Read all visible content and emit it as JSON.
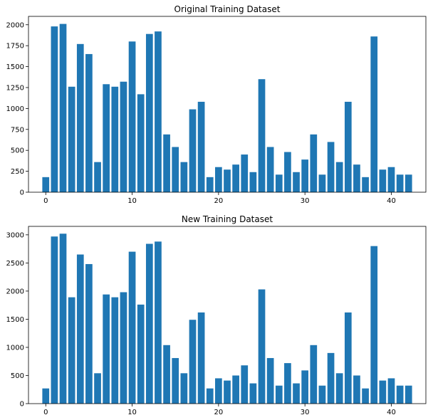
{
  "chart_data": [
    {
      "type": "bar",
      "title": "Original Training Dataset",
      "xlabel": "",
      "ylabel": "",
      "x": [
        0,
        1,
        2,
        3,
        4,
        5,
        6,
        7,
        8,
        9,
        10,
        11,
        12,
        13,
        14,
        15,
        16,
        17,
        18,
        19,
        20,
        21,
        22,
        23,
        24,
        25,
        26,
        27,
        28,
        29,
        30,
        31,
        32,
        33,
        34,
        35,
        36,
        37,
        38,
        39,
        40,
        41,
        42
      ],
      "values": [
        180,
        1980,
        2010,
        1260,
        1770,
        1650,
        360,
        1290,
        1260,
        1320,
        1800,
        1170,
        1890,
        1920,
        690,
        540,
        360,
        990,
        1080,
        180,
        300,
        270,
        330,
        450,
        240,
        1350,
        540,
        210,
        480,
        240,
        390,
        690,
        210,
        600,
        360,
        1080,
        330,
        180,
        1860,
        270,
        300,
        210,
        210
      ],
      "xlim": [
        -2,
        44
      ],
      "ylim": [
        0,
        2100
      ],
      "xticks": [
        0,
        10,
        20,
        30,
        40
      ],
      "yticks": [
        0,
        250,
        500,
        750,
        1000,
        1250,
        1500,
        1750,
        2000
      ],
      "bar_color": "#1f77b4",
      "grid": false
    },
    {
      "type": "bar",
      "title": "New Training Dataset",
      "xlabel": "",
      "ylabel": "",
      "x": [
        0,
        1,
        2,
        3,
        4,
        5,
        6,
        7,
        8,
        9,
        10,
        11,
        12,
        13,
        14,
        15,
        16,
        17,
        18,
        19,
        20,
        21,
        22,
        23,
        24,
        25,
        26,
        27,
        28,
        29,
        30,
        31,
        32,
        33,
        34,
        35,
        36,
        37,
        38,
        39,
        40,
        41,
        42
      ],
      "values": [
        270,
        2970,
        3020,
        1890,
        2650,
        2480,
        540,
        1940,
        1890,
        1980,
        2700,
        1760,
        2840,
        2880,
        1040,
        810,
        540,
        1490,
        1620,
        270,
        450,
        410,
        500,
        680,
        360,
        2030,
        810,
        320,
        720,
        360,
        590,
        1040,
        320,
        900,
        540,
        1620,
        500,
        270,
        2800,
        410,
        450,
        320,
        320
      ],
      "xlim": [
        -2,
        44
      ],
      "ylim": [
        0,
        3150
      ],
      "xticks": [
        0,
        10,
        20,
        30,
        40
      ],
      "yticks": [
        0,
        500,
        1000,
        1500,
        2000,
        2500,
        3000
      ],
      "bar_color": "#1f77b4",
      "grid": false
    }
  ]
}
